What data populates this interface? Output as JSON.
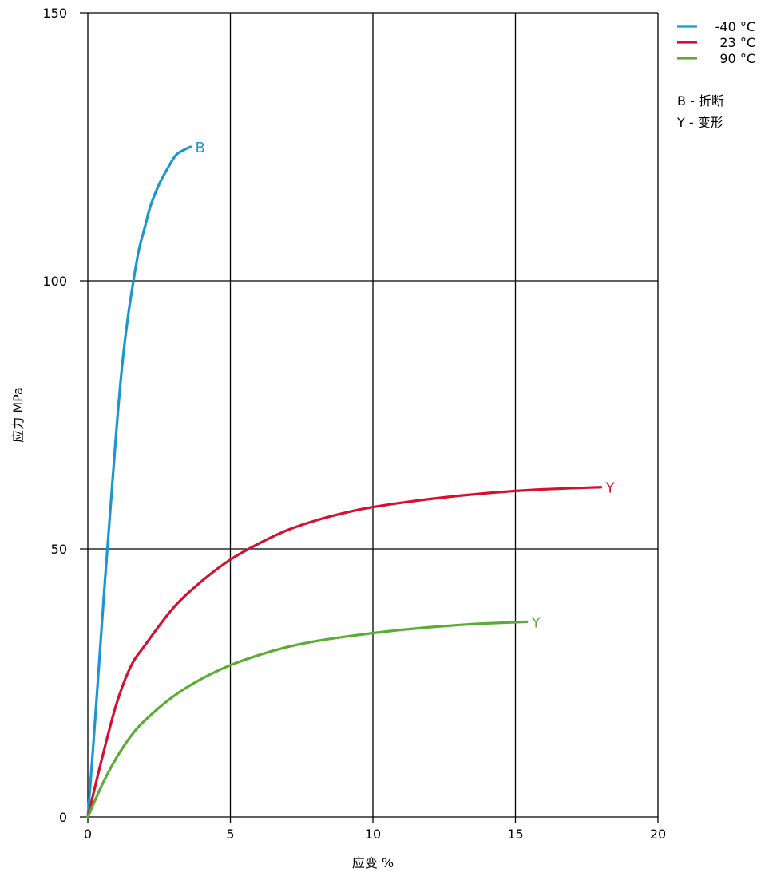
{
  "chart_data": {
    "type": "line",
    "title": "",
    "xlabel": "应变 %",
    "ylabel": "应力 MPa",
    "xlim": [
      0,
      20
    ],
    "ylim": [
      0,
      150
    ],
    "xticks": [
      0,
      5,
      10,
      15,
      20
    ],
    "yticks": [
      0,
      50,
      100,
      150
    ],
    "grid": true,
    "legend_position": "top-right",
    "series": [
      {
        "name": "-40 °C",
        "color": "#1a96d2",
        "end_label": "B",
        "x": [
          0,
          0.2,
          0.4,
          0.6,
          0.8,
          1.0,
          1.2,
          1.4,
          1.6,
          1.8,
          2.0,
          2.2,
          2.5,
          2.8,
          3.1,
          3.4,
          3.6
        ],
        "y": [
          0,
          14,
          29,
          44,
          58,
          72,
          84,
          93,
          100,
          106,
          110,
          114,
          118,
          121,
          123.5,
          124.5,
          125
        ]
      },
      {
        "name": "23 °C",
        "color": "#d5112f",
        "end_label": "Y",
        "x": [
          0,
          0.5,
          1.0,
          1.5,
          2.0,
          3.0,
          4.0,
          5.0,
          6.0,
          7.0,
          8.0,
          9.0,
          10.0,
          12.0,
          14.0,
          16.0,
          18.0
        ],
        "y": [
          0,
          11,
          21,
          28,
          32,
          39,
          44,
          48,
          51,
          53.5,
          55.3,
          56.7,
          57.8,
          59.3,
          60.4,
          61.1,
          61.5
        ]
      },
      {
        "name": "90 °C",
        "color": "#5aad32",
        "end_label": "Y",
        "x": [
          0,
          0.5,
          1.0,
          1.5,
          2.0,
          3.0,
          4.0,
          5.0,
          6.0,
          7.0,
          8.0,
          9.0,
          10.0,
          11.0,
          12.0,
          13.0,
          14.0,
          15.4
        ],
        "y": [
          0,
          6,
          11,
          15,
          18,
          22.5,
          25.8,
          28.3,
          30.2,
          31.7,
          32.8,
          33.6,
          34.3,
          34.9,
          35.4,
          35.8,
          36.1,
          36.4
        ]
      }
    ],
    "annotations": [
      "B - 折断",
      "Y - 变形"
    ]
  }
}
